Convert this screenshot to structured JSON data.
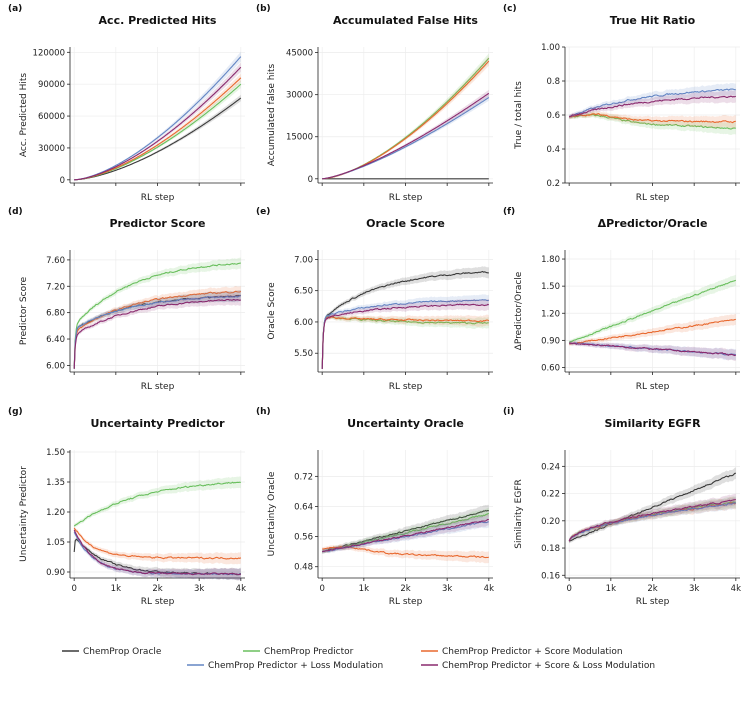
{
  "colors": {
    "ChemProp Oracle": "#3a3a3a",
    "ChemProp Predictor": "#6abf5e",
    "ChemProp Predictor + Score Modulation": "#e8692f",
    "ChemProp Predictor + Loss Modulation": "#6486c4",
    "ChemProp Predictor + Score & Loss Modulation": "#8a2a6e"
  },
  "legend": [
    "ChemProp Oracle",
    "ChemProp Predictor",
    "ChemProp Predictor + Score Modulation",
    "ChemProp Predictor + Loss Modulation",
    "ChemProp Predictor + Score & Loss Modulation"
  ],
  "x_ticks": [
    "0",
    "1k",
    "2k",
    "3k",
    "4k"
  ],
  "chart_data": [
    {
      "panel": "(a)",
      "title": "Acc. Predicted Hits",
      "xlabel": "RL step",
      "ylabel": "Acc. Predicted Hits",
      "ylim": [
        -3000,
        125000
      ],
      "yticks": [
        0,
        30000,
        60000,
        90000,
        120000
      ],
      "show_xticks": false,
      "type": "line",
      "series": [
        {
          "name": "ChemProp Oracle",
          "end": 77000,
          "shape": "pow"
        },
        {
          "name": "ChemProp Predictor",
          "end": 90000,
          "shape": "pow"
        },
        {
          "name": "ChemProp Predictor + Score Modulation",
          "end": 96000,
          "shape": "pow"
        },
        {
          "name": "ChemProp Predictor + Loss Modulation",
          "end": 116000,
          "shape": "pow"
        },
        {
          "name": "ChemProp Predictor + Score & Loss Modulation",
          "end": 106000,
          "shape": "pow"
        }
      ]
    },
    {
      "panel": "(b)",
      "title": "Accumulated False Hits",
      "xlabel": "RL step",
      "ylabel": "Accumulated false hits",
      "ylim": [
        -1500,
        47000
      ],
      "yticks": [
        0,
        15000,
        30000,
        45000
      ],
      "show_xticks": false,
      "type": "line",
      "series": [
        {
          "name": "ChemProp Oracle",
          "end": 0,
          "shape": "flat"
        },
        {
          "name": "ChemProp Predictor",
          "end": 43000,
          "shape": "pow"
        },
        {
          "name": "ChemProp Predictor + Score Modulation",
          "end": 42000,
          "shape": "pow"
        },
        {
          "name": "ChemProp Predictor + Loss Modulation",
          "end": 29000,
          "shape": "sub"
        },
        {
          "name": "ChemProp Predictor + Score & Loss Modulation",
          "end": 30500,
          "shape": "sub"
        }
      ]
    },
    {
      "panel": "(c)",
      "title": "True Hit Ratio",
      "xlabel": "RL step",
      "ylabel": "True / total hits",
      "ylim": [
        0.2,
        1.0
      ],
      "yticks": [
        0.2,
        0.4,
        0.6,
        0.8,
        1.0
      ],
      "show_xticks": false,
      "type": "line",
      "series": [
        {
          "name": "ChemProp Predictor",
          "start": 0.57,
          "end": 0.52,
          "shape": "hump"
        },
        {
          "name": "ChemProp Predictor + Score Modulation",
          "start": 0.57,
          "end": 0.56,
          "shape": "hump"
        },
        {
          "name": "ChemProp Predictor + Loss Modulation",
          "start": 0.59,
          "end": 0.75,
          "shape": "rise"
        },
        {
          "name": "ChemProp Predictor + Score & Loss Modulation",
          "start": 0.59,
          "end": 0.71,
          "shape": "rise"
        }
      ]
    },
    {
      "panel": "(d)",
      "title": "Predictor Score",
      "xlabel": "RL step",
      "ylabel": "Predictor Score",
      "ylim": [
        5.9,
        7.75
      ],
      "yticks": [
        6.0,
        6.4,
        6.8,
        7.2,
        7.6
      ],
      "show_xticks": false,
      "type": "line",
      "series": [
        {
          "name": "ChemProp Oracle",
          "start": 5.95,
          "plateau": 6.55,
          "end": 7.05,
          "shape": "sat"
        },
        {
          "name": "ChemProp Predictor",
          "start": 5.95,
          "plateau": 6.6,
          "end": 7.55,
          "shape": "sat"
        },
        {
          "name": "ChemProp Predictor + Score Modulation",
          "start": 5.95,
          "plateau": 6.5,
          "end": 7.12,
          "shape": "sat"
        },
        {
          "name": "ChemProp Predictor + Loss Modulation",
          "start": 5.95,
          "plateau": 6.55,
          "end": 7.05,
          "shape": "sat"
        },
        {
          "name": "ChemProp Predictor + Score & Loss Modulation",
          "start": 5.95,
          "plateau": 6.45,
          "end": 7.0,
          "shape": "sat"
        }
      ]
    },
    {
      "panel": "(e)",
      "title": "Oracle Score",
      "xlabel": "RL step",
      "ylabel": "Oracle Score",
      "ylim": [
        5.2,
        7.15
      ],
      "yticks": [
        5.5,
        6.0,
        6.5,
        7.0
      ],
      "show_xticks": false,
      "type": "line",
      "series": [
        {
          "name": "ChemProp Oracle",
          "start": 5.25,
          "plateau": 6.05,
          "end": 6.8,
          "shape": "sat"
        },
        {
          "name": "ChemProp Predictor",
          "start": 5.25,
          "plateau": 6.1,
          "end": 5.98,
          "shape": "sat"
        },
        {
          "name": "ChemProp Predictor + Score Modulation",
          "start": 5.25,
          "plateau": 6.08,
          "end": 6.02,
          "shape": "sat"
        },
        {
          "name": "ChemProp Predictor + Loss Modulation",
          "start": 5.25,
          "plateau": 6.08,
          "end": 6.35,
          "shape": "sat"
        },
        {
          "name": "ChemProp Predictor + Score & Loss Modulation",
          "start": 5.25,
          "plateau": 6.05,
          "end": 6.28,
          "shape": "sat"
        }
      ]
    },
    {
      "panel": "(f)",
      "title": "ΔPredictor/Oracle",
      "xlabel": "RL step",
      "ylabel": "ΔPredictor/Oracle",
      "ylim": [
        0.55,
        1.9
      ],
      "yticks": [
        0.6,
        0.9,
        1.2,
        1.5,
        1.8
      ],
      "show_xticks": false,
      "type": "line",
      "series": [
        {
          "name": "ChemProp Predictor",
          "start": 0.88,
          "end": 1.57,
          "shape": "lin"
        },
        {
          "name": "ChemProp Predictor + Score Modulation",
          "start": 0.86,
          "end": 1.13,
          "shape": "lin"
        },
        {
          "name": "ChemProp Predictor + Loss Modulation",
          "start": 0.87,
          "end": 0.74,
          "shape": "lin"
        },
        {
          "name": "ChemProp Predictor + Score & Loss Modulation",
          "start": 0.87,
          "end": 0.74,
          "shape": "lin"
        }
      ]
    },
    {
      "panel": "(g)",
      "title": "Uncertainty Predictor",
      "xlabel": "RL step",
      "ylabel": "Uncertainty Predictor",
      "ylim": [
        0.87,
        1.51
      ],
      "yticks": [
        0.9,
        1.05,
        1.2,
        1.35,
        1.5
      ],
      "show_xticks": true,
      "type": "line",
      "series": [
        {
          "name": "ChemProp Oracle",
          "start": 1.0,
          "plateau": 1.08,
          "end": 0.89,
          "shape": "decay"
        },
        {
          "name": "ChemProp Predictor",
          "start": 1.13,
          "end": 1.35,
          "shape": "risesat"
        },
        {
          "name": "ChemProp Predictor + Score Modulation",
          "start": 1.12,
          "end": 0.97,
          "shape": "decay"
        },
        {
          "name": "ChemProp Predictor + Loss Modulation",
          "start": 1.1,
          "end": 0.89,
          "shape": "decay"
        },
        {
          "name": "ChemProp Predictor + Score & Loss Modulation",
          "start": 1.11,
          "end": 0.89,
          "shape": "decay"
        }
      ]
    },
    {
      "panel": "(h)",
      "title": "Uncertainty Oracle",
      "xlabel": "RL step",
      "ylabel": "Uncertainty Oracle",
      "ylim": [
        0.45,
        0.79
      ],
      "yticks": [
        0.48,
        0.56,
        0.64,
        0.72
      ],
      "show_xticks": true,
      "type": "line",
      "series": [
        {
          "name": "ChemProp Oracle",
          "start": 0.52,
          "end": 0.63,
          "shape": "lin"
        },
        {
          "name": "ChemProp Predictor",
          "start": 0.52,
          "end": 0.62,
          "shape": "lin"
        },
        {
          "name": "ChemProp Predictor + Score Modulation",
          "start": 0.52,
          "end": 0.505,
          "shape": "hump"
        },
        {
          "name": "ChemProp Predictor + Loss Modulation",
          "start": 0.52,
          "end": 0.6,
          "shape": "lin"
        },
        {
          "name": "ChemProp Predictor + Score & Loss Modulation",
          "start": 0.52,
          "end": 0.605,
          "shape": "lin"
        }
      ]
    },
    {
      "panel": "(i)",
      "title": "Similarity EGFR",
      "xlabel": "RL step",
      "ylabel": "Similarity EGFR",
      "ylim": [
        0.158,
        0.252
      ],
      "yticks": [
        0.16,
        0.18,
        0.2,
        0.22,
        0.24
      ],
      "show_xticks": true,
      "type": "line",
      "series": [
        {
          "name": "ChemProp Oracle",
          "start": 0.185,
          "end": 0.235,
          "shape": "lin"
        },
        {
          "name": "ChemProp Predictor",
          "start": 0.185,
          "end": 0.214,
          "shape": "sqrt"
        },
        {
          "name": "ChemProp Predictor + Score Modulation",
          "start": 0.185,
          "end": 0.213,
          "shape": "sqrt"
        },
        {
          "name": "ChemProp Predictor + Loss Modulation",
          "start": 0.185,
          "end": 0.213,
          "shape": "sqrt"
        },
        {
          "name": "ChemProp Predictor + Score & Loss Modulation",
          "start": 0.185,
          "end": 0.215,
          "shape": "sqrt"
        }
      ]
    }
  ]
}
